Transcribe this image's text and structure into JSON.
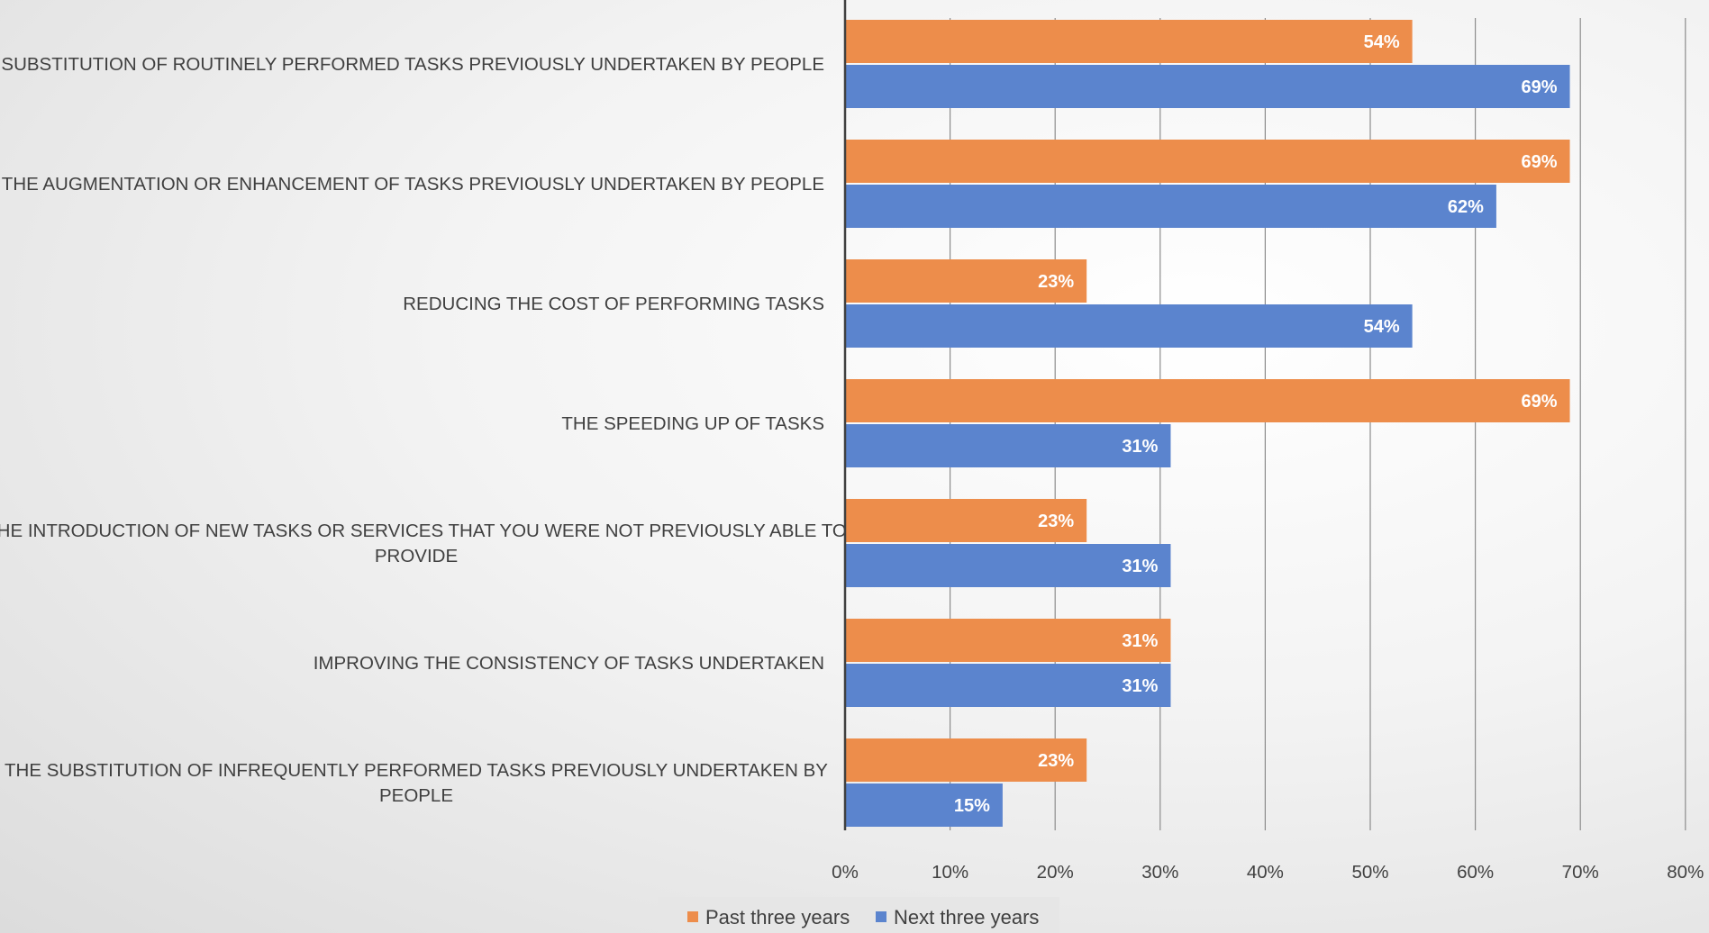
{
  "chart_data": {
    "type": "bar",
    "orientation": "horizontal",
    "categories": [
      [
        "THE SUBSTITUTION OF ROUTINELY PERFORMED TASKS PREVIOUSLY UNDERTAKEN BY PEOPLE"
      ],
      [
        "THE AUGMENTATION OR ENHANCEMENT OF TASKS PREVIOUSLY UNDERTAKEN BY PEOPLE"
      ],
      [
        "REDUCING THE COST OF PERFORMING TASKS"
      ],
      [
        "THE SPEEDING UP OF TASKS"
      ],
      [
        "THE INTRODUCTION OF NEW TASKS OR SERVICES THAT YOU WERE NOT PREVIOUSLY ABLE TO",
        "PROVIDE"
      ],
      [
        "IMPROVING THE CONSISTENCY OF TASKS UNDERTAKEN"
      ],
      [
        "THE SUBSTITUTION OF INFREQUENTLY PERFORMED TASKS PREVIOUSLY UNDERTAKEN BY",
        "PEOPLE"
      ]
    ],
    "series": [
      {
        "name": "Past three years",
        "color": "#ED8D4B",
        "values": [
          54,
          69,
          23,
          69,
          23,
          31,
          23
        ],
        "labels": [
          "54%",
          "69%",
          "23%",
          "69%",
          "23%",
          "31%",
          "23%"
        ]
      },
      {
        "name": "Next three years",
        "color": "#5B84CE",
        "values": [
          69,
          62,
          54,
          31,
          31,
          31,
          15
        ],
        "labels": [
          "69%",
          "62%",
          "54%",
          "31%",
          "31%",
          "31%",
          "15%"
        ]
      }
    ],
    "xlim": [
      0,
      80
    ],
    "xticks": [
      "0%",
      "10%",
      "20%",
      "30%",
      "40%",
      "50%",
      "60%",
      "70%",
      "80%"
    ],
    "grid": true,
    "legend_position": "bottom",
    "colors": {
      "gridline": "#8c8c8c",
      "axis": "#404040",
      "legend_bg": "#e6e6e6"
    }
  }
}
